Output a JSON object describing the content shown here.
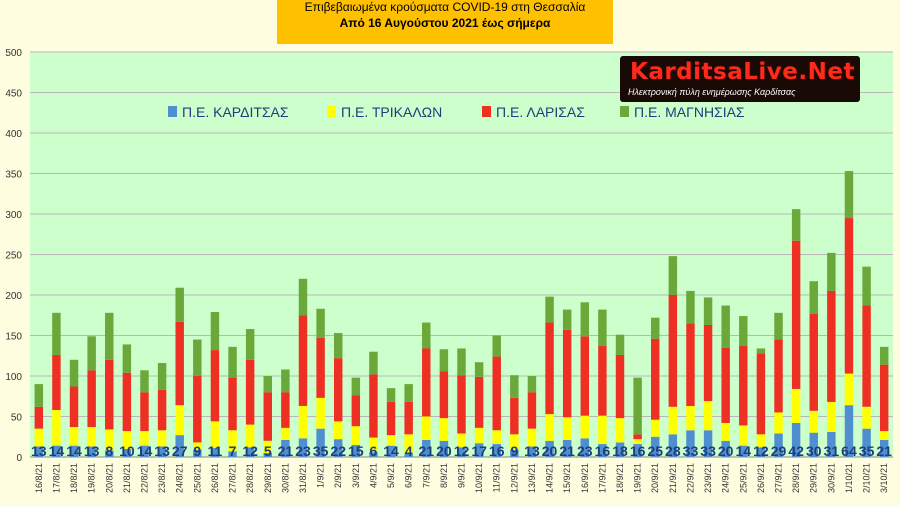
{
  "title_line1": "Επιβεβαιωμένα κρούσματα COVID-19 στη Θεσσαλία",
  "title_line2": "Από 16 Αυγούστου 2021 έως σήμερα",
  "logo": {
    "brand": "KarditsaLive.Net",
    "tagline": "Ηλεκτρονική πύλη ενημέρωσης Καρδίτσας"
  },
  "chart_data": {
    "type": "bar",
    "stacked": true,
    "ylim": [
      0,
      500
    ],
    "yticks": [
      0,
      50,
      100,
      150,
      200,
      250,
      300,
      350,
      400,
      450,
      500
    ],
    "grid": true,
    "legend_position": "top",
    "categories": [
      "16/8/21",
      "17/8/21",
      "18/8/21",
      "19/8/21",
      "20/8/21",
      "21/8/21",
      "22/8/21",
      "23/8/21",
      "24/8/21",
      "25/8/21",
      "26/8/21",
      "27/8/21",
      "28/8/21",
      "29/8/21",
      "30/8/21",
      "31/8/21",
      "1/9/21",
      "2/9/21",
      "3/9/21",
      "4/9/21",
      "5/9/21",
      "6/9/21",
      "7/9/21",
      "8/9/21",
      "9/9/21",
      "10/9/21",
      "11/9/21",
      "12/9/21",
      "13/9/21",
      "14/9/21",
      "15/9/21",
      "16/9/21",
      "17/9/21",
      "18/9/21",
      "19/9/21",
      "20/9/21",
      "21/9/21",
      "22/9/21",
      "23/9/21",
      "24/9/21",
      "25/9/21",
      "26/9/21",
      "27/9/21",
      "28/9/21",
      "29/9/21",
      "30/9/21",
      "1/10/21",
      "2/10/21",
      "3/10/21"
    ],
    "series": [
      {
        "name": "Π.Ε. ΚΑΡΔΙΤΣΑΣ",
        "color": "#4f8fd0",
        "values": [
          13,
          14,
          14,
          13,
          8,
          10,
          14,
          13,
          27,
          9,
          11,
          7,
          12,
          5,
          21,
          23,
          35,
          22,
          15,
          6,
          14,
          4,
          21,
          20,
          12,
          17,
          16,
          9,
          13,
          20,
          21,
          23,
          16,
          18,
          16,
          25,
          28,
          33,
          33,
          20,
          14,
          12,
          29,
          42,
          30,
          31,
          64,
          35,
          21
        ]
      },
      {
        "name": "Π.Ε. ΤΡΙΚΑΛΩΝ",
        "color": "#ffff00",
        "values": [
          22,
          44,
          23,
          24,
          26,
          22,
          18,
          20,
          37,
          9,
          33,
          26,
          28,
          15,
          15,
          40,
          38,
          22,
          23,
          18,
          13,
          24,
          29,
          28,
          17,
          19,
          17,
          19,
          22,
          33,
          28,
          28,
          35,
          30,
          6,
          21,
          34,
          30,
          36,
          22,
          25,
          16,
          26,
          42,
          27,
          37,
          39,
          27,
          11
        ]
      },
      {
        "name": "Π.Ε. ΛΑΡΙΣΑΣ",
        "color": "#ee3024",
        "values": [
          27,
          68,
          50,
          70,
          86,
          72,
          48,
          50,
          103,
          82,
          88,
          65,
          80,
          60,
          44,
          112,
          74,
          78,
          38,
          78,
          41,
          40,
          84,
          58,
          72,
          63,
          91,
          45,
          45,
          113,
          108,
          98,
          86,
          78,
          6,
          100,
          138,
          102,
          94,
          93,
          98,
          100,
          90,
          183,
          120,
          137,
          192,
          125,
          82
        ]
      },
      {
        "name": "Π.Ε. ΜΑΓΝΗΣΙΑΣ",
        "color": "#6aa83a",
        "values": [
          28,
          52,
          33,
          42,
          58,
          35,
          27,
          33,
          42,
          45,
          47,
          38,
          38,
          20,
          28,
          45,
          36,
          31,
          22,
          28,
          17,
          22,
          32,
          27,
          33,
          18,
          26,
          28,
          20,
          32,
          25,
          42,
          45,
          25,
          70,
          26,
          48,
          40,
          34,
          52,
          37,
          6,
          33,
          39,
          40,
          47,
          58,
          48,
          22
        ]
      }
    ],
    "bar_labels": [
      "13",
      "14",
      "14",
      "13",
      "8",
      "10",
      "14",
      "13",
      "27",
      "9",
      "11",
      "7",
      "12",
      "5",
      "21",
      "23",
      "35",
      "22",
      "15",
      "6",
      "14",
      "4",
      "21",
      "20",
      "12",
      "17",
      "16",
      "9",
      "13",
      "20",
      "21",
      "23",
      "16",
      "18",
      "16",
      "25",
      "28",
      "33",
      "33",
      "20",
      "14",
      "12",
      "29",
      "42",
      "30",
      "31",
      "64",
      "35",
      "21"
    ]
  }
}
